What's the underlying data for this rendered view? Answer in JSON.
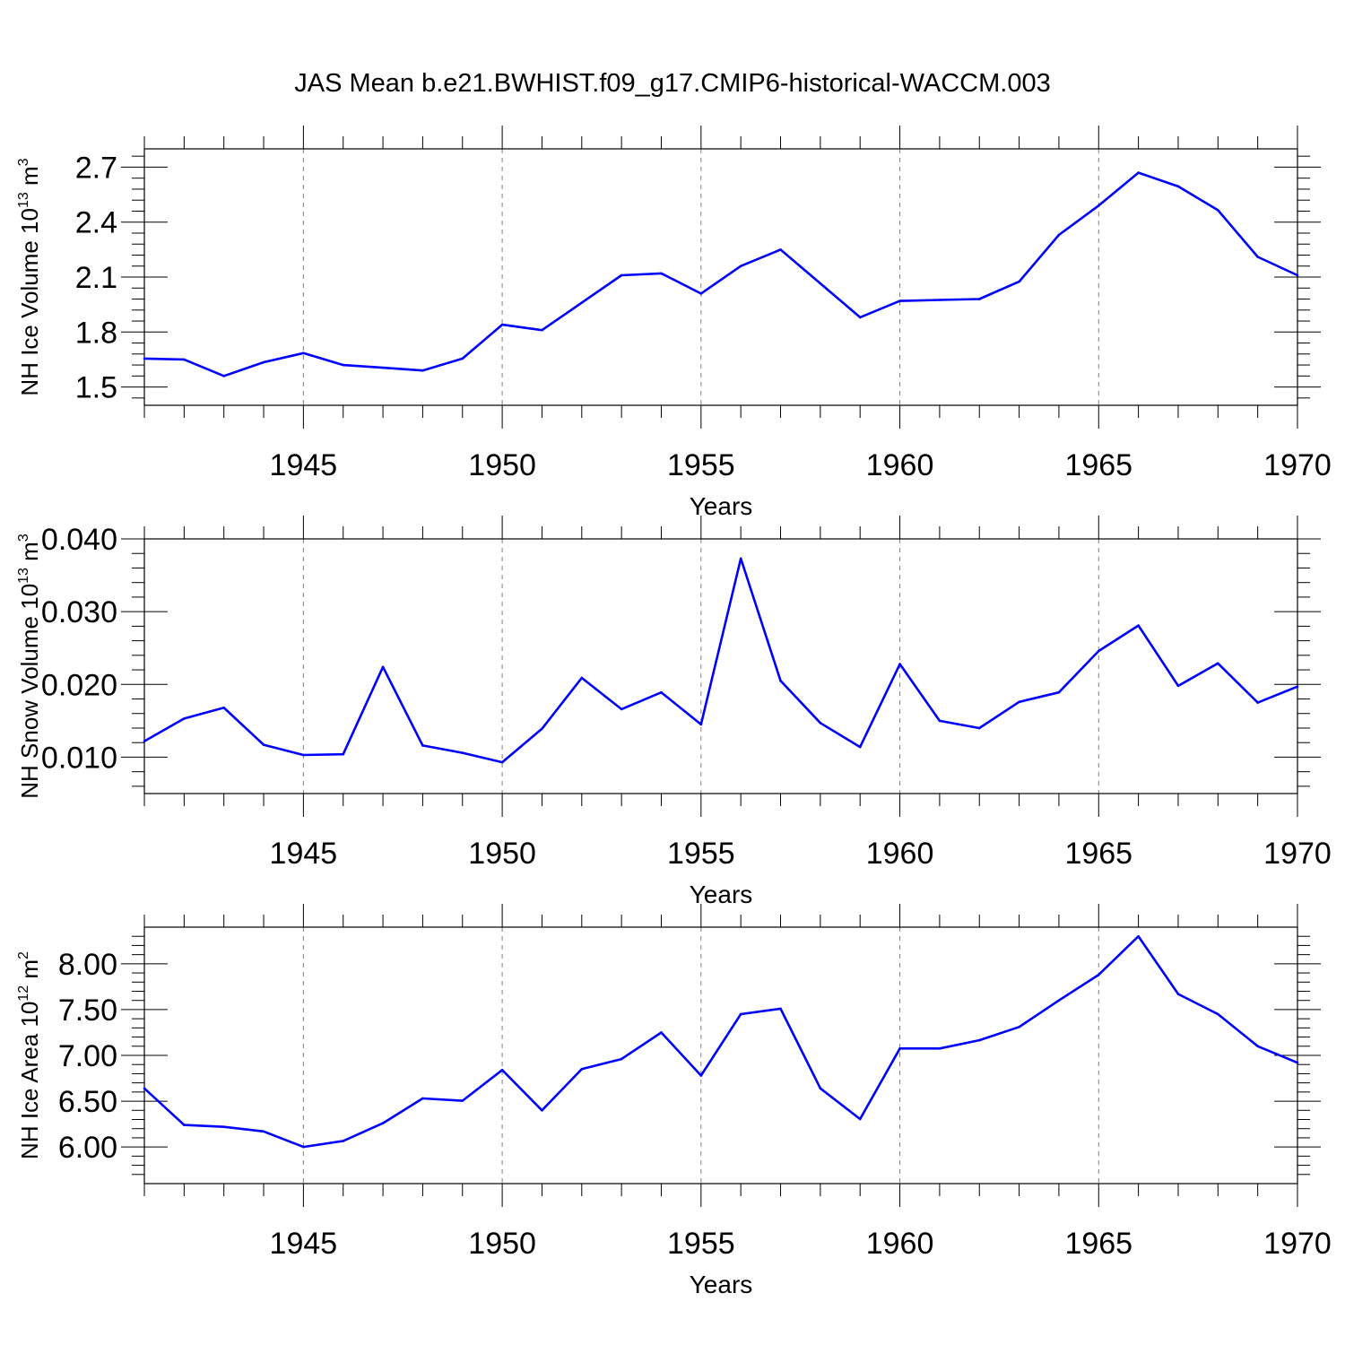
{
  "title": "JAS Mean b.e21.BWHIST.f09_g17.CMIP6-historical-WACCM.003",
  "colors": {
    "line": "#0000ff",
    "axis": "#000000",
    "grid": "#808080"
  },
  "chart_data": [
    {
      "type": "line",
      "title": "JAS Mean b.e21.BWHIST.f09_g17.CMIP6-historical-WACCM.003",
      "xlabel": "Years",
      "ylabel": {
        "text": "NH Ice Volume 10",
        "sup": "13",
        "unit": " m",
        "unit_sup": "3"
      },
      "xlim": [
        1941,
        1970
      ],
      "ylim": [
        1.4,
        2.8
      ],
      "x_ticks": [
        1945,
        1950,
        1955,
        1960,
        1965,
        1970
      ],
      "x_tick_labels": [
        "1945",
        "1950",
        "1955",
        "1960",
        "1965",
        "1970"
      ],
      "y_ticks": [
        1.5,
        1.8,
        2.1,
        2.4,
        2.7
      ],
      "y_tick_labels": [
        "1.5",
        "1.8",
        "2.1",
        "2.4",
        "2.7"
      ],
      "y_minor_step": 0.06,
      "grid": "dashed vertical at major x ticks",
      "x": [
        1941,
        1942,
        1943,
        1944,
        1945,
        1946,
        1947,
        1948,
        1949,
        1950,
        1951,
        1952,
        1953,
        1954,
        1955,
        1956,
        1957,
        1958,
        1959,
        1960,
        1961,
        1962,
        1963,
        1964,
        1965,
        1966,
        1967,
        1968,
        1969,
        1970
      ],
      "values": [
        1.655,
        1.65,
        1.56,
        1.635,
        1.685,
        1.62,
        1.605,
        1.59,
        1.655,
        1.84,
        1.81,
        1.96,
        2.11,
        2.12,
        2.01,
        2.16,
        2.25,
        2.065,
        1.88,
        1.97,
        1.975,
        1.98,
        2.075,
        2.33,
        2.49,
        2.67,
        2.595,
        2.465,
        2.21,
        2.11
      ]
    },
    {
      "type": "line",
      "xlabel": "Years",
      "ylabel": {
        "text": "NH Snow Volume 10",
        "sup": "13",
        "unit": " m",
        "unit_sup": "3"
      },
      "xlim": [
        1941,
        1970
      ],
      "ylim": [
        0.005,
        0.04
      ],
      "x_ticks": [
        1945,
        1950,
        1955,
        1960,
        1965,
        1970
      ],
      "x_tick_labels": [
        "1945",
        "1950",
        "1955",
        "1960",
        "1965",
        "1970"
      ],
      "y_ticks": [
        0.01,
        0.02,
        0.03,
        0.04
      ],
      "y_tick_labels": [
        "0.010",
        "0.020",
        "0.030",
        "0.040"
      ],
      "y_minor_step": 0.002,
      "grid": "dashed vertical at major x ticks",
      "x": [
        1941,
        1942,
        1943,
        1944,
        1945,
        1946,
        1947,
        1948,
        1949,
        1950,
        1951,
        1952,
        1953,
        1954,
        1955,
        1956,
        1957,
        1958,
        1959,
        1960,
        1961,
        1962,
        1963,
        1964,
        1965,
        1966,
        1967,
        1968,
        1969,
        1970
      ],
      "values": [
        0.0122,
        0.0153,
        0.0168,
        0.0117,
        0.0103,
        0.0104,
        0.0224,
        0.0116,
        0.0106,
        0.0093,
        0.0139,
        0.0209,
        0.0166,
        0.0189,
        0.0145,
        0.0373,
        0.0205,
        0.0147,
        0.0114,
        0.0228,
        0.015,
        0.014,
        0.0176,
        0.0189,
        0.0246,
        0.0281,
        0.0198,
        0.0229,
        0.0175,
        0.0197
      ]
    },
    {
      "type": "line",
      "xlabel": "Years",
      "ylabel": {
        "text": "NH Ice Area 10",
        "sup": "12",
        "unit": " m",
        "unit_sup": "2"
      },
      "xlim": [
        1941,
        1970
      ],
      "ylim": [
        5.6,
        8.4
      ],
      "x_ticks": [
        1945,
        1950,
        1955,
        1960,
        1965,
        1970
      ],
      "x_tick_labels": [
        "1945",
        "1950",
        "1955",
        "1960",
        "1965",
        "1970"
      ],
      "y_ticks": [
        6.0,
        6.5,
        7.0,
        7.5,
        8.0
      ],
      "y_tick_labels": [
        "6.00",
        "6.50",
        "7.00",
        "7.50",
        "8.00"
      ],
      "y_minor_step": 0.1,
      "grid": "dashed vertical at major x ticks",
      "x": [
        1941,
        1942,
        1943,
        1944,
        1945,
        1946,
        1947,
        1948,
        1949,
        1950,
        1951,
        1952,
        1953,
        1954,
        1955,
        1956,
        1957,
        1958,
        1959,
        1960,
        1961,
        1962,
        1963,
        1964,
        1965,
        1966,
        1967,
        1968,
        1969,
        1970
      ],
      "values": [
        6.64,
        6.24,
        6.22,
        6.17,
        6.0,
        6.065,
        6.26,
        6.53,
        6.505,
        6.84,
        6.4,
        6.85,
        6.96,
        7.25,
        6.78,
        7.45,
        7.51,
        6.64,
        6.305,
        7.075,
        7.075,
        7.165,
        7.31,
        7.6,
        7.88,
        8.3,
        7.67,
        7.45,
        7.1,
        6.92
      ]
    }
  ]
}
